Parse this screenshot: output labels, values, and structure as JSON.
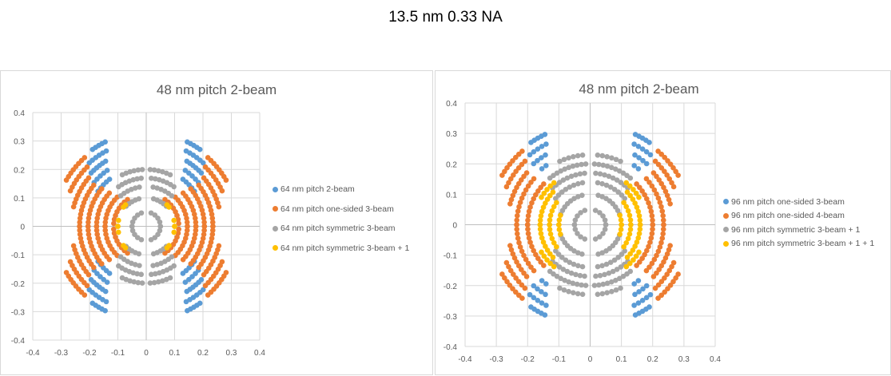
{
  "page": {
    "title": "13.5 nm 0.33 NA"
  },
  "colors": {
    "blue": "#5b9bd5",
    "orange": "#ed7d31",
    "gray": "#a5a5a5",
    "yellow": "#ffc000",
    "grid": "#d9d9d9",
    "axis_text": "#595959"
  },
  "charts": [
    {
      "title": "48 nm pitch 2-beam",
      "legend": [
        {
          "label": "64 nm pitch 2-beam",
          "color": "#5b9bd5"
        },
        {
          "label": "64 nm pitch one-sided 3-beam",
          "color": "#ed7d31"
        },
        {
          "label": "64 nm  pitch symmetric 3-beam",
          "color": "#a5a5a5"
        },
        {
          "label": "64 nm pitch symmetric 3-beam + 1",
          "color": "#ffc000"
        }
      ],
      "x_ticks": [
        "-0.4",
        "-0.3",
        "-0.2",
        "-0.1",
        "0",
        "0.1",
        "0.2",
        "0.3",
        "0.4"
      ],
      "y_ticks": [
        "0.4",
        "0.3",
        "0.2",
        "0.1",
        "0",
        "-0.1",
        "-0.2",
        "-0.3",
        "-0.4"
      ]
    },
    {
      "title": "48 nm pitch 2-beam",
      "legend": [
        {
          "label": "96 nm pitch one-sided 3-beam",
          "color": "#5b9bd5"
        },
        {
          "label": "96 nm pitch one-sided 4-beam",
          "color": "#ed7d31"
        },
        {
          "label": "96 nm pitch symmetric 3-beam + 1",
          "color": "#a5a5a5"
        },
        {
          "label": "96 nm pitch symmetric 3-beam + 1 + 1",
          "color": "#ffc000"
        }
      ],
      "x_ticks": [
        "-0.4",
        "-0.3",
        "-0.2",
        "-0.1",
        "0",
        "0.1",
        "0.2",
        "0.3",
        "0.4"
      ],
      "y_ticks": [
        "0.4",
        "0.3",
        "0.2",
        "0.1",
        "0",
        "-0.1",
        "-0.2",
        "-0.3",
        "-0.4"
      ]
    }
  ],
  "chart_data": [
    {
      "type": "scatter",
      "title": "48 nm pitch 2-beam",
      "xlabel": "",
      "ylabel": "",
      "xlim": [
        -0.4,
        0.4
      ],
      "ylim": [
        -0.4,
        0.4
      ],
      "grid": true,
      "legend_position": "right",
      "symmetry": "mirrored in x and y (dipole pupil)",
      "series": [
        {
          "name": "64 nm pitch 2-beam",
          "color": "#5b9bd5",
          "arcs": [
            {
              "r": 0.21,
              "a0": 36,
              "a1": 52
            },
            {
              "r": 0.24,
              "a0": 40,
              "a1": 55
            },
            {
              "r": 0.27,
              "a0": 44,
              "a1": 58
            },
            {
              "r": 0.3,
              "a0": 48,
              "a1": 62
            },
            {
              "r": 0.33,
              "a0": 55,
              "a1": 64
            }
          ]
        },
        {
          "name": "64 nm pitch one-sided 3-beam",
          "color": "#ed7d31",
          "arcs": [
            {
              "r": 0.115,
              "a0": 5,
              "a1": 55
            },
            {
              "r": 0.145,
              "a0": 0,
              "a1": 45
            },
            {
              "r": 0.175,
              "a0": 0,
              "a1": 42
            },
            {
              "r": 0.205,
              "a0": 0,
              "a1": 40
            },
            {
              "r": 0.235,
              "a0": 0,
              "a1": 38
            },
            {
              "r": 0.265,
              "a0": 15,
              "a1": 40
            },
            {
              "r": 0.295,
              "a0": 25,
              "a1": 45
            },
            {
              "r": 0.325,
              "a0": 30,
              "a1": 48
            }
          ]
        },
        {
          "name": "64 nm  pitch symmetric 3-beam",
          "color": "#a5a5a5",
          "arcs": [
            {
              "r": 0.05,
              "a0": 0,
              "a1": 70
            },
            {
              "r": 0.1,
              "a0": 45,
              "a1": 75
            },
            {
              "r": 0.14,
              "a0": 50,
              "a1": 80
            },
            {
              "r": 0.17,
              "a0": 55,
              "a1": 84
            },
            {
              "r": 0.2,
              "a0": 65,
              "a1": 86
            }
          ]
        },
        {
          "name": "64 nm pitch symmetric 3-beam + 1",
          "color": "#ffc000",
          "arcs": [
            {
              "r": 0.1,
              "a0": 0,
              "a1": 12
            },
            {
              "r": 0.105,
              "a0": 40,
              "a1": 46
            }
          ]
        }
      ]
    },
    {
      "type": "scatter",
      "title": "48 nm pitch 2-beam",
      "xlabel": "",
      "ylabel": "",
      "xlim": [
        -0.4,
        0.4
      ],
      "ylim": [
        -0.4,
        0.4
      ],
      "grid": true,
      "legend_position": "right",
      "symmetry": "mirrored in x and y (dipole pupil)",
      "series": [
        {
          "name": "96 nm pitch one-sided 3-beam",
          "color": "#5b9bd5",
          "arcs": [
            {
              "r": 0.24,
              "a0": 50,
              "a1": 54
            },
            {
              "r": 0.27,
              "a0": 48,
              "a1": 58
            },
            {
              "r": 0.3,
              "a0": 50,
              "a1": 62
            },
            {
              "r": 0.33,
              "a0": 55,
              "a1": 64
            }
          ]
        },
        {
          "name": "96 nm pitch one-sided 4-beam",
          "color": "#ed7d31",
          "arcs": [
            {
              "r": 0.2,
              "a0": 0,
              "a1": 42
            },
            {
              "r": 0.235,
              "a0": 0,
              "a1": 40
            },
            {
              "r": 0.265,
              "a0": 15,
              "a1": 40
            },
            {
              "r": 0.295,
              "a0": 25,
              "a1": 45
            },
            {
              "r": 0.325,
              "a0": 30,
              "a1": 48
            }
          ]
        },
        {
          "name": "96 nm pitch symmetric 3-beam + 1",
          "color": "#a5a5a5",
          "arcs": [
            {
              "r": 0.05,
              "a0": 0,
              "a1": 70
            },
            {
              "r": 0.1,
              "a0": 20,
              "a1": 75
            },
            {
              "r": 0.14,
              "a0": 38,
              "a1": 80
            },
            {
              "r": 0.17,
              "a0": 45,
              "a1": 84
            },
            {
              "r": 0.2,
              "a0": 50,
              "a1": 86
            },
            {
              "r": 0.23,
              "a0": 65,
              "a1": 84
            }
          ]
        },
        {
          "name": "96 nm pitch symmetric 3-beam + 1 + 1",
          "color": "#ffc000",
          "arcs": [
            {
              "r": 0.1,
              "a0": 0,
              "a1": 18
            },
            {
              "r": 0.13,
              "a0": 0,
              "a1": 34
            },
            {
              "r": 0.16,
              "a0": 0,
              "a1": 42
            },
            {
              "r": 0.18,
              "a0": 30,
              "a1": 50
            }
          ]
        }
      ]
    }
  ]
}
